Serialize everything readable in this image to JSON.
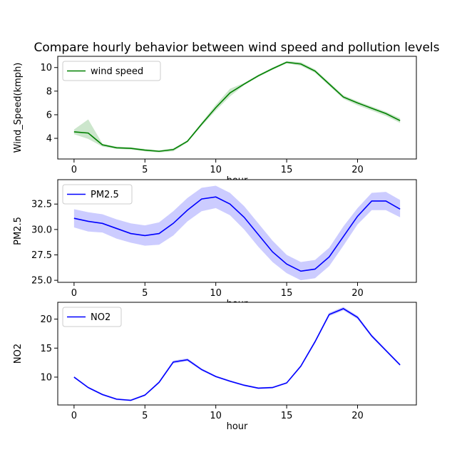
{
  "colors": {
    "wind": "#008000",
    "pm": "#0000ff",
    "no2": "#0000ff",
    "axes": "#000000",
    "background": "#ffffff"
  },
  "chart_data": [
    {
      "type": "line",
      "title": "Compare hourly behavior between wind speed and pollution levels",
      "xlabel": "hour",
      "ylabel": "Wind_Speed(kmph)",
      "legend_position": "top-left",
      "xlim": [
        -1.15,
        24.15
      ],
      "ylim": [
        2.25,
        10.95
      ],
      "x_ticks": [
        0,
        5,
        10,
        15,
        20
      ],
      "y_ticks": [
        4,
        6,
        8,
        10
      ],
      "series": [
        {
          "name": "wind speed",
          "x": [
            0,
            1,
            2,
            3,
            4,
            5,
            6,
            7,
            8,
            9,
            10,
            11,
            12,
            13,
            14,
            15,
            16,
            17,
            18,
            19,
            20,
            21,
            22,
            23
          ],
          "y": [
            4.55,
            4.45,
            3.45,
            3.2,
            3.15,
            3.0,
            2.9,
            3.05,
            3.75,
            5.2,
            6.6,
            7.85,
            8.6,
            9.3,
            9.9,
            10.45,
            10.3,
            9.7,
            8.6,
            7.5,
            7.0,
            6.55,
            6.1,
            5.5
          ],
          "ci_lower": [
            4.35,
            3.95,
            3.3,
            3.1,
            3.05,
            2.9,
            2.8,
            2.9,
            3.65,
            5.05,
            6.35,
            7.55,
            8.5,
            9.2,
            9.8,
            10.35,
            10.15,
            9.55,
            8.45,
            7.35,
            6.8,
            6.35,
            5.9,
            5.3
          ],
          "ci_upper": [
            4.75,
            5.6,
            3.55,
            3.3,
            3.25,
            3.1,
            3.0,
            3.15,
            3.85,
            5.35,
            6.85,
            8.2,
            8.7,
            9.4,
            10.0,
            10.55,
            10.45,
            9.85,
            8.75,
            7.65,
            7.15,
            6.7,
            6.25,
            5.7
          ]
        }
      ]
    },
    {
      "type": "line",
      "xlabel": "hour",
      "ylabel": "PM2.5",
      "legend_position": "top-left",
      "xlim": [
        -1.15,
        24.15
      ],
      "ylim": [
        24.8,
        34.9
      ],
      "x_ticks": [
        0,
        5,
        10,
        15,
        20
      ],
      "y_ticks": [
        25.0,
        27.5,
        30.0,
        32.5
      ],
      "series": [
        {
          "name": "PM2.5",
          "x": [
            0,
            1,
            2,
            3,
            4,
            5,
            6,
            7,
            8,
            9,
            10,
            11,
            12,
            13,
            14,
            15,
            16,
            17,
            18,
            19,
            20,
            21,
            22,
            23
          ],
          "y": [
            31.1,
            30.8,
            30.6,
            30.1,
            29.6,
            29.4,
            29.6,
            30.6,
            31.9,
            33.0,
            33.2,
            32.5,
            31.2,
            29.5,
            27.8,
            26.6,
            25.9,
            26.1,
            27.3,
            29.3,
            31.3,
            32.8,
            32.8,
            32.0
          ],
          "ci_lower": [
            30.2,
            29.8,
            29.7,
            29.1,
            28.7,
            28.4,
            28.5,
            29.4,
            30.8,
            31.8,
            32.1,
            31.4,
            30.0,
            28.3,
            26.8,
            25.7,
            25.0,
            25.2,
            26.4,
            28.4,
            30.5,
            31.9,
            31.9,
            31.2
          ],
          "ci_upper": [
            32.0,
            31.7,
            31.5,
            31.0,
            30.6,
            30.4,
            30.7,
            31.8,
            33.1,
            34.1,
            34.3,
            33.6,
            32.3,
            30.6,
            28.9,
            27.5,
            26.8,
            27.0,
            28.2,
            30.3,
            32.1,
            33.6,
            33.7,
            32.9
          ]
        }
      ]
    },
    {
      "type": "line",
      "xlabel": "hour",
      "ylabel": "NO2",
      "legend_position": "top-left",
      "xlim": [
        -1.15,
        24.15
      ],
      "ylim": [
        5.2,
        22.9
      ],
      "x_ticks": [
        0,
        5,
        10,
        15,
        20
      ],
      "y_ticks": [
        10,
        15,
        20
      ],
      "series": [
        {
          "name": "NO2",
          "x": [
            0,
            1,
            2,
            3,
            4,
            5,
            6,
            7,
            8,
            9,
            10,
            11,
            12,
            13,
            14,
            15,
            16,
            17,
            18,
            19,
            20,
            21,
            22,
            23
          ],
          "y": [
            10.0,
            8.2,
            7.0,
            6.2,
            6.0,
            6.9,
            9.1,
            12.6,
            13.0,
            11.3,
            10.1,
            9.3,
            8.6,
            8.1,
            8.2,
            9.0,
            11.9,
            16.1,
            20.8,
            21.8,
            20.3,
            17.1,
            14.6,
            12.1
          ],
          "ci_lower": [
            9.85,
            8.05,
            6.85,
            6.05,
            5.85,
            6.75,
            8.9,
            12.35,
            12.75,
            11.1,
            9.95,
            9.15,
            8.45,
            7.95,
            8.05,
            8.85,
            11.7,
            15.85,
            20.5,
            21.5,
            20.0,
            16.85,
            14.4,
            11.9
          ],
          "ci_upper": [
            10.15,
            8.35,
            7.15,
            6.35,
            6.15,
            7.05,
            9.3,
            12.85,
            13.25,
            11.5,
            10.25,
            9.45,
            8.75,
            8.25,
            8.35,
            9.15,
            12.1,
            16.35,
            21.1,
            22.1,
            20.6,
            17.35,
            14.8,
            12.3
          ]
        }
      ]
    }
  ]
}
